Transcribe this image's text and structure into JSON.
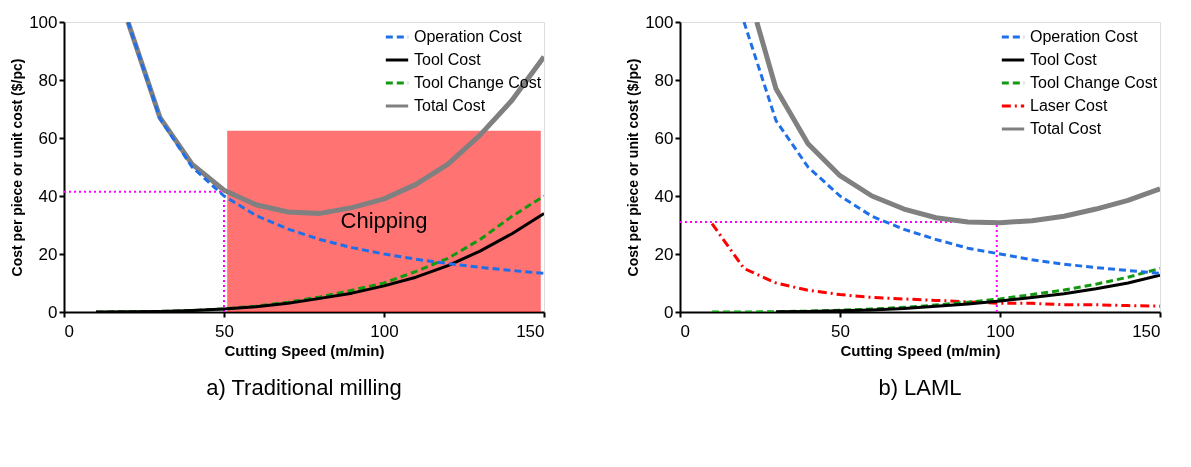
{
  "chart_data": [
    {
      "type": "line",
      "title": "a)  Traditional milling",
      "xlabel": "Cutting Speed (m/min)",
      "ylabel": "Cost per piece or unit cost ($/pc)",
      "xlim": [
        0,
        150
      ],
      "xticks": [
        0,
        50,
        100,
        150
      ],
      "ylim": [
        0,
        100
      ],
      "yticks": [
        0,
        20,
        40,
        60,
        80,
        100
      ],
      "grid": false,
      "legend": "top right",
      "series": [
        {
          "name": "Operation Cost",
          "color": "#1f6fe8",
          "line_style": "dashed",
          "x": [
            20,
            30,
            40,
            50,
            60,
            70,
            80,
            90,
            100,
            110,
            120,
            130,
            140,
            150
          ],
          "values": [
            100,
            66.7,
            50,
            40,
            33.3,
            28.6,
            25,
            22.2,
            20,
            18.2,
            16.7,
            15.4,
            14.3,
            13.3
          ]
        },
        {
          "name": "Tool Cost",
          "color": "#000000",
          "line_style": "solid",
          "x": [
            10,
            20,
            30,
            40,
            50,
            60,
            70,
            80,
            90,
            100,
            110,
            120,
            130,
            140,
            150
          ],
          "values": [
            0,
            0.1,
            0.2,
            0.5,
            1,
            1.8,
            3,
            4.7,
            6.5,
            9,
            12,
            16,
            21,
            27,
            34
          ]
        },
        {
          "name": "Tool Change Cost",
          "color": "#119911",
          "line_style": "dashed",
          "x": [
            10,
            20,
            30,
            40,
            50,
            60,
            70,
            80,
            90,
            100,
            110,
            120,
            130,
            140,
            150
          ],
          "values": [
            0,
            0.1,
            0.2,
            0.5,
            1.1,
            2,
            3.4,
            5.2,
            7.5,
            10,
            14,
            18.5,
            25,
            33,
            40
          ]
        },
        {
          "name": "Total Cost",
          "color": "#808080",
          "line_style": "solid",
          "x": [
            20,
            30,
            40,
            50,
            60,
            70,
            80,
            90,
            100,
            110,
            120,
            130,
            140,
            150
          ],
          "values": [
            100,
            67,
            51,
            42,
            37,
            34.5,
            34,
            36,
            39,
            44,
            51,
            61,
            73,
            88
          ]
        }
      ],
      "bands": [
        {
          "axis": "x",
          "from": 51,
          "to": 149,
          "label": "Chipping",
          "color": "#ff0000"
        }
      ],
      "ref_lines": [
        {
          "axis": "x",
          "value": 50,
          "color": "#ff00ff",
          "line_style": "dotted"
        },
        {
          "axis": "y",
          "value": 41.5,
          "color": "#ff00ff",
          "line_style": "dotted"
        }
      ]
    },
    {
      "type": "line",
      "title": "b)  LAML",
      "xlabel": "Cutting Speed (m/min)",
      "ylabel": "Cost per piece or unit cost ($/pc)",
      "xlim": [
        0,
        150
      ],
      "xticks": [
        0,
        50,
        100,
        150
      ],
      "ylim": [
        0,
        100
      ],
      "yticks": [
        0,
        20,
        40,
        60,
        80,
        100
      ],
      "grid": false,
      "legend": "top right",
      "series": [
        {
          "name": "Operation Cost",
          "color": "#1f6fe8",
          "line_style": "dashed",
          "x": [
            20,
            30,
            40,
            50,
            60,
            70,
            80,
            90,
            100,
            110,
            120,
            130,
            140,
            150
          ],
          "values": [
            100,
            66,
            50,
            40,
            33,
            28.5,
            25,
            22,
            20,
            18,
            16.5,
            15.3,
            14.3,
            13.3
          ]
        },
        {
          "name": "Tool Cost",
          "color": "#000000",
          "line_style": "solid",
          "x": [
            30,
            40,
            50,
            60,
            70,
            80,
            90,
            100,
            110,
            120,
            130,
            140,
            150
          ],
          "values": [
            0.1,
            0.2,
            0.4,
            0.7,
            1.2,
            2,
            2.8,
            3.8,
            5,
            6.3,
            8,
            10,
            12.7
          ]
        },
        {
          "name": "Tool Change Cost",
          "color": "#119911",
          "line_style": "dashed",
          "x": [
            10,
            20,
            30,
            40,
            50,
            60,
            70,
            80,
            90,
            100,
            110,
            120,
            130,
            140,
            150
          ],
          "values": [
            0,
            0,
            0.1,
            0.3,
            0.6,
            1,
            1.6,
            2.4,
            3.4,
            4.5,
            6,
            7.6,
            9.6,
            12,
            15
          ]
        },
        {
          "name": "Laser Cost",
          "color": "#ff0000",
          "line_style": "dashdot",
          "x": [
            10,
            20,
            30,
            40,
            50,
            60,
            70,
            80,
            90,
            100,
            110,
            120,
            130,
            140,
            150
          ],
          "values": [
            30.5,
            15,
            10,
            7.5,
            6,
            5,
            4.5,
            4,
            3.5,
            3,
            3,
            2.5,
            2.5,
            2.2,
            2
          ]
        },
        {
          "name": "Total Cost",
          "color": "#808080",
          "line_style": "solid",
          "x": [
            24,
            30,
            40,
            50,
            60,
            70,
            80,
            90,
            100,
            110,
            120,
            130,
            140,
            150
          ],
          "values": [
            100,
            77,
            58,
            47,
            40,
            35.5,
            32.5,
            31,
            30.8,
            31.5,
            33,
            35.5,
            38.5,
            42.5
          ]
        }
      ],
      "ref_lines": [
        {
          "axis": "x",
          "value": 99,
          "color": "#ff00ff",
          "line_style": "dotted"
        },
        {
          "axis": "y",
          "value": 31,
          "color": "#ff00ff",
          "line_style": "dotted"
        }
      ]
    }
  ]
}
